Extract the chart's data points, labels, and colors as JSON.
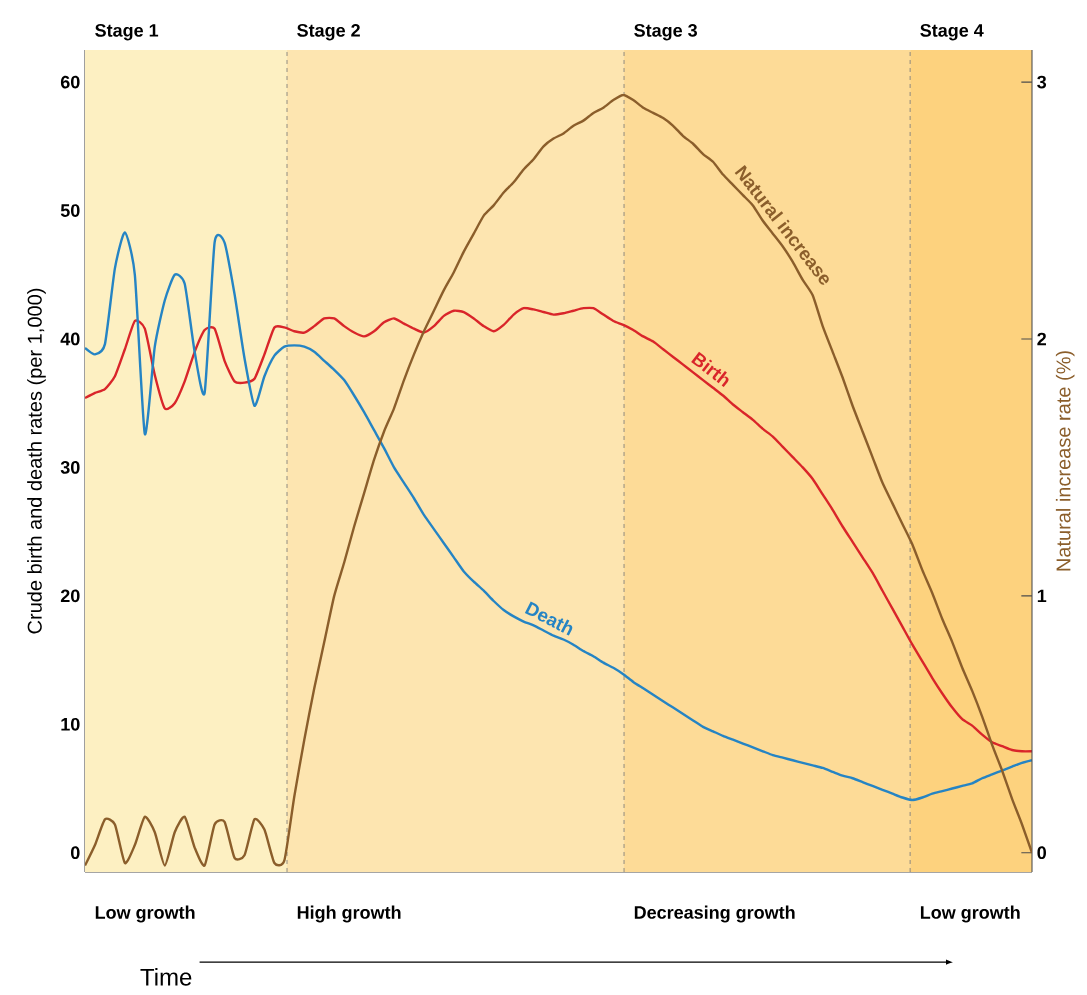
{
  "chart_data": {
    "type": "line",
    "xlabel": "Time",
    "ylabel": "Crude birth and death rates (per 1,000)",
    "y2label": "Natural increase rate (%)",
    "categories": [
      null,
      null,
      null,
      null,
      null,
      null,
      null,
      null,
      null,
      null,
      null,
      null,
      null,
      null,
      null,
      null,
      null,
      null,
      null,
      null,
      null,
      null,
      null,
      null,
      null,
      null,
      null,
      null,
      null,
      null,
      null,
      null,
      null,
      null,
      null,
      null,
      null,
      null,
      null,
      null,
      null,
      null,
      null,
      null,
      null,
      null,
      null,
      null,
      null,
      null,
      null,
      null,
      null,
      null,
      null,
      null,
      null,
      null,
      null,
      null,
      null,
      null,
      null,
      null,
      null,
      null,
      null,
      null,
      null,
      null,
      null,
      null,
      null,
      null,
      null,
      null,
      null,
      null,
      null,
      null,
      null,
      null,
      null,
      null,
      null,
      null,
      null,
      null,
      null,
      null,
      null,
      null,
      null,
      null,
      null,
      null
    ],
    "ylim": [
      -1.5,
      62.5
    ],
    "yticks": [
      0,
      10,
      20,
      30,
      40,
      50,
      60
    ],
    "y2lim": [
      -0.075,
      3.125
    ],
    "y2ticks": [
      0,
      1,
      2,
      3
    ],
    "series": [
      {
        "name": "Birth",
        "color": "#d9252a",
        "values": [
          35.4,
          35.8,
          36.1,
          37.1,
          39.2,
          41.4,
          40.8,
          37.2,
          34.6,
          35.0,
          36.7,
          39.0,
          40.7,
          40.8,
          38.3,
          36.7,
          36.6,
          36.9,
          38.8,
          40.9,
          40.9,
          40.6,
          40.5,
          41.0,
          41.6,
          41.6,
          41.0,
          40.5,
          40.2,
          40.6,
          41.3,
          41.6,
          41.2,
          40.8,
          40.5,
          41.0,
          41.8,
          42.2,
          42.1,
          41.6,
          41.0,
          40.6,
          41.1,
          41.9,
          42.4,
          42.3,
          42.1,
          41.9,
          42.0,
          42.2,
          42.4,
          42.4,
          41.9,
          41.4,
          41.1,
          40.7,
          40.2,
          39.8,
          39.2,
          38.6,
          38.0,
          37.4,
          36.8,
          36.2,
          35.6,
          34.9,
          34.3,
          33.7,
          33.0,
          32.4,
          31.6,
          30.8,
          30.0,
          29.1,
          27.9,
          26.7,
          25.4,
          24.2,
          23.0,
          21.8,
          20.4,
          19.0,
          17.6,
          16.2,
          14.9,
          13.6,
          12.4,
          11.3,
          10.4,
          9.9,
          9.2,
          8.6,
          8.3,
          8.0,
          7.9,
          7.9
        ]
      },
      {
        "name": "Death",
        "color": "#2584c4",
        "values": [
          39.3,
          38.8,
          39.6,
          45.5,
          48.3,
          45.0,
          32.6,
          39.4,
          43.0,
          45.0,
          44.3,
          39.0,
          35.8,
          47.5,
          47.5,
          43.5,
          38.5,
          34.8,
          37.1,
          38.7,
          39.4,
          39.5,
          39.4,
          39.0,
          38.3,
          37.6,
          36.8,
          35.6,
          34.3,
          32.9,
          31.5,
          30.0,
          28.8,
          27.6,
          26.3,
          25.2,
          24.1,
          23.0,
          21.9,
          21.1,
          20.4,
          19.6,
          18.9,
          18.4,
          18.0,
          17.7,
          17.3,
          16.9,
          16.6,
          16.2,
          15.7,
          15.3,
          14.8,
          14.4,
          13.9,
          13.3,
          12.8,
          12.3,
          11.8,
          11.3,
          10.8,
          10.3,
          9.8,
          9.45,
          9.1,
          8.8,
          8.5,
          8.2,
          7.9,
          7.6,
          7.4,
          7.2,
          7.0,
          6.8,
          6.6,
          6.3,
          6.0,
          5.8,
          5.5,
          5.2,
          4.9,
          4.6,
          4.3,
          4.1,
          4.3,
          4.6,
          4.8,
          5.0,
          5.2,
          5.4,
          5.8,
          6.1,
          6.4,
          6.7,
          7.0,
          7.2
        ]
      },
      {
        "name": "Natural increase",
        "color": "#8b5e2b",
        "axis": "y2",
        "values": [
          -0.05,
          0.03,
          0.13,
          0.11,
          -0.04,
          0.03,
          0.14,
          0.08,
          -0.05,
          0.08,
          0.14,
          0.02,
          -0.05,
          0.11,
          0.12,
          -0.02,
          -0.01,
          0.13,
          0.09,
          -0.04,
          -0.03,
          0.22,
          0.44,
          0.64,
          0.82,
          1.0,
          1.13,
          1.27,
          1.4,
          1.53,
          1.64,
          1.73,
          1.84,
          1.94,
          2.03,
          2.11,
          2.19,
          2.26,
          2.34,
          2.41,
          2.48,
          2.52,
          2.57,
          2.61,
          2.66,
          2.7,
          2.75,
          2.78,
          2.8,
          2.83,
          2.85,
          2.88,
          2.9,
          2.93,
          2.95,
          2.93,
          2.9,
          2.88,
          2.86,
          2.83,
          2.79,
          2.76,
          2.72,
          2.69,
          2.64,
          2.6,
          2.56,
          2.52,
          2.46,
          2.41,
          2.36,
          2.3,
          2.23,
          2.17,
          2.05,
          1.95,
          1.85,
          1.74,
          1.64,
          1.54,
          1.44,
          1.36,
          1.28,
          1.2,
          1.1,
          1.01,
          0.91,
          0.82,
          0.72,
          0.63,
          0.53,
          0.42,
          0.32,
          0.21,
          0.11,
          0.0
        ]
      }
    ],
    "annotations": [
      "Stage 1",
      "Stage 2",
      "Stage 3",
      "Stage 4",
      "Low growth",
      "High growth",
      "Decreasing growth",
      "Low growth"
    ]
  }
}
